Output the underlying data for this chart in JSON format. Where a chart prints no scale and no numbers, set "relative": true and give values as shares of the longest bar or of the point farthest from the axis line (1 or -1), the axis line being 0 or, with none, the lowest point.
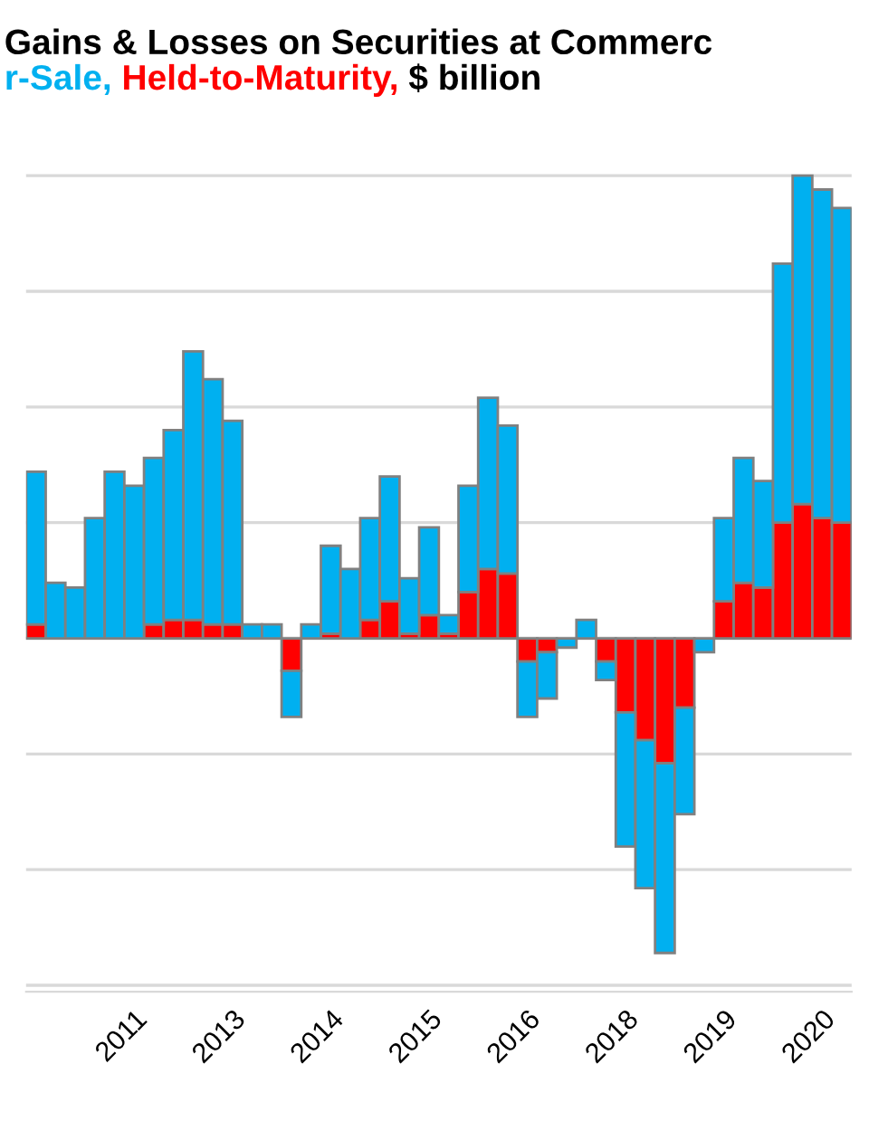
{
  "chart_data": {
    "type": "bar",
    "title": "Gains & Losses on Securities at Commerc",
    "subtitle": "$ billion",
    "stacked": true,
    "relative": true,
    "grid": "y",
    "categories": [
      null,
      null,
      null,
      null,
      null,
      "2011",
      null,
      null,
      null,
      null,
      "2013",
      null,
      null,
      null,
      null,
      "2014",
      null,
      null,
      null,
      null,
      "2015",
      null,
      null,
      null,
      null,
      "2016",
      null,
      null,
      null,
      null,
      "2018",
      null,
      null,
      null,
      null,
      "2019",
      null,
      null,
      null,
      null,
      "2020",
      null
    ],
    "series": [
      {
        "name": "Held-to-Maturity,",
        "color": "#ff0000",
        "values": [
          0.03,
          0,
          0,
          0,
          0,
          0,
          0.03,
          0.04,
          0.04,
          0.03,
          0.03,
          0,
          0,
          -0.07,
          0,
          0.01,
          0,
          0.04,
          0.08,
          0.01,
          0.05,
          0.01,
          0.1,
          0.15,
          0.14,
          -0.05,
          -0.03,
          0,
          0,
          -0.05,
          -0.16,
          -0.22,
          -0.27,
          -0.15,
          0,
          0.08,
          0.12,
          0.11,
          0.25,
          0.29,
          0.26,
          0.25
        ]
      },
      {
        "name": "r-Sale,",
        "color": "#00b0f0",
        "values": [
          0.33,
          0.12,
          0.11,
          0.26,
          0.36,
          0.33,
          0.36,
          0.41,
          0.58,
          0.53,
          0.44,
          0.03,
          0.03,
          -0.1,
          0.03,
          0.19,
          0.15,
          0.22,
          0.27,
          0.12,
          0.19,
          0.04,
          0.23,
          0.37,
          0.32,
          -0.12,
          -0.1,
          -0.02,
          0.04,
          -0.04,
          -0.29,
          -0.32,
          -0.41,
          -0.23,
          -0.03,
          0.18,
          0.27,
          0.23,
          0.56,
          0.71,
          0.71,
          0.68
        ]
      }
    ]
  }
}
